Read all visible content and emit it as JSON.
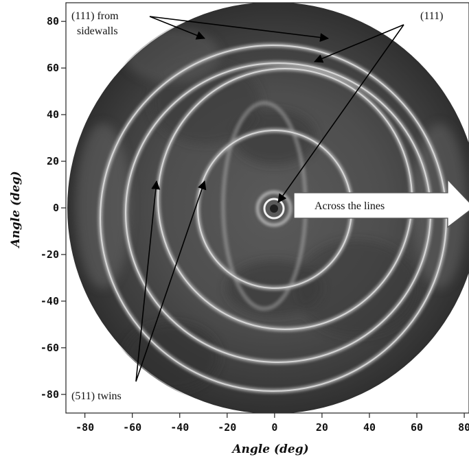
{
  "chart_data": {
    "type": "heatmap",
    "title": "",
    "xlabel": "Angle (deg)",
    "ylabel": "Angle (deg)",
    "xlim": [
      -88,
      82
    ],
    "ylim": [
      -88,
      88
    ],
    "x_ticks": [
      -80,
      -60,
      -40,
      -20,
      0,
      20,
      40,
      60,
      80
    ],
    "y_ticks": [
      80,
      60,
      40,
      20,
      0,
      -20,
      -40,
      -60,
      -80
    ],
    "x_tick_labels": [
      "-80",
      "-60",
      "-40",
      "-20",
      "0",
      "20",
      "40",
      "60",
      "80"
    ],
    "y_tick_labels": [
      "80",
      "60",
      "40",
      "20",
      "0",
      "-20",
      "-40",
      "-60",
      "-80"
    ],
    "grid": false,
    "colormap": "grayscale",
    "annotations": [
      {
        "id": "sidewalls",
        "lines": [
          "(111) from",
          "sidewalls"
        ]
      },
      {
        "id": "top111",
        "lines": [
          "(111)"
        ]
      },
      {
        "id": "twins",
        "lines": [
          "(511) twins"
        ]
      },
      {
        "id": "across",
        "lines": [
          "Across the lines"
        ]
      }
    ]
  }
}
